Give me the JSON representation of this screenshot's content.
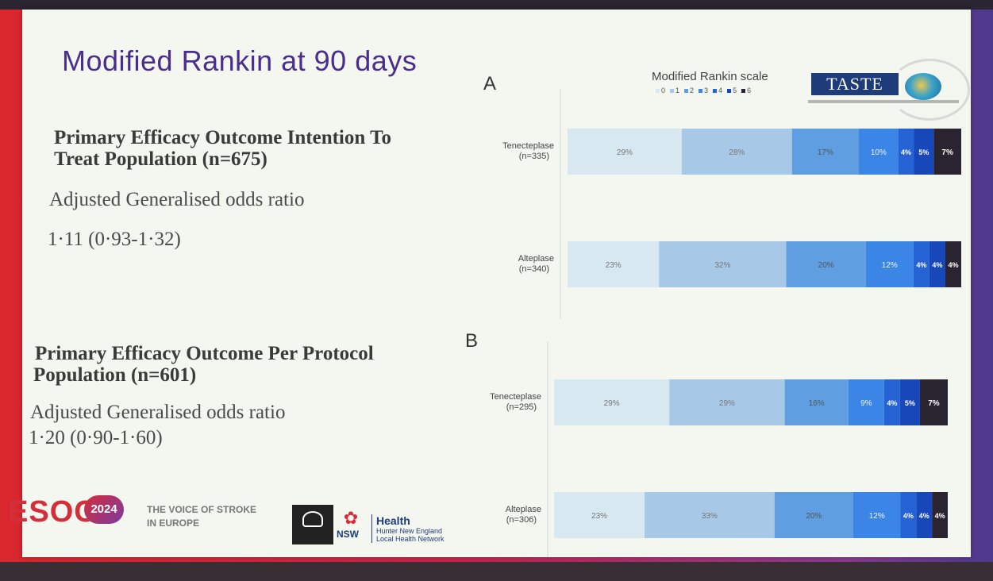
{
  "slide_title": "Modified Rankin at 90 days",
  "panel_a_letter": "A",
  "panel_b_letter": "B",
  "section_a": {
    "heading_line1": "Primary Efficacy Outcome Intention To",
    "heading_line2": "Treat Population (n=675)",
    "odds_label": "Adjusted Generalised odds ratio",
    "odds_value": "1·11 (0·93-1·32)"
  },
  "section_b": {
    "heading_line1": "Primary Efficacy Outcome Per Protocol",
    "heading_line2": "Population (n=601)",
    "odds_label": "Adjusted Generalised odds ratio",
    "odds_value": "1·20 (0·90-1·60)"
  },
  "logo": {
    "text": "TASTE"
  },
  "footer": {
    "esoc": "ESOC",
    "year": "2024",
    "voice_line1": "THE VOICE OF STROKE",
    "voice_line2": "IN EUROPE",
    "nsw": "NSW",
    "health_title": "Health",
    "health_line1": "Hunter New England",
    "health_line2": "Local Health Network"
  },
  "chart_data": {
    "type": "bar",
    "orientation": "horizontal-stacked-100",
    "title": "Modified Rankin scale",
    "legend_labels": [
      "0",
      "1",
      "2",
      "3",
      "4",
      "5",
      "6"
    ],
    "colors": [
      "#d7e8f0",
      "#a8c8e8",
      "#5f9ee0",
      "#3a85e6",
      "#2563d4",
      "#1747b8",
      "#2a2430"
    ],
    "value_label_colors": [
      "#777777",
      "#777777",
      "#555555",
      "#f0f4ff",
      "#ffffff",
      "#ffffff",
      "#ffffff"
    ],
    "panels": [
      {
        "letter": "A",
        "rows": [
          {
            "label_line1": "Tenecteplase",
            "label_line2": "(n=335)",
            "values": [
              29,
              28,
              17,
              10,
              4,
              5,
              7
            ]
          },
          {
            "label_line1": "Alteplase",
            "label_line2": "(n=340)",
            "values": [
              23,
              32,
              20,
              12,
              4,
              4,
              4
            ]
          }
        ]
      },
      {
        "letter": "B",
        "rows": [
          {
            "label_line1": "Tenecteplase",
            "label_line2": "(n=295)",
            "values": [
              29,
              29,
              16,
              9,
              4,
              5,
              7
            ]
          },
          {
            "label_line1": "Alteplase",
            "label_line2": "(n=306)",
            "values": [
              23,
              33,
              20,
              12,
              4,
              4,
              4
            ]
          }
        ]
      }
    ]
  }
}
